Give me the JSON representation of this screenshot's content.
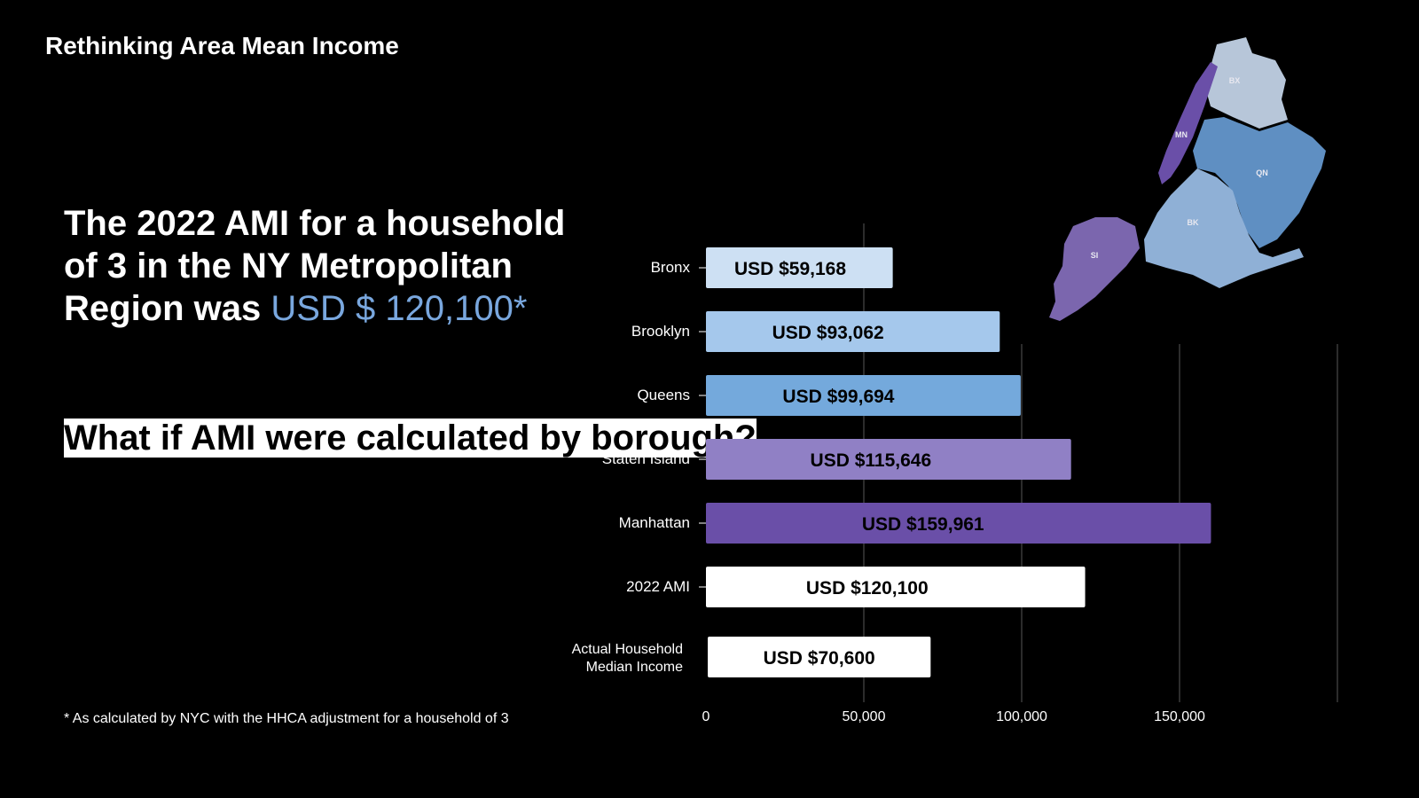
{
  "page": {
    "title": "Rethinking Area Mean Income",
    "headline_part1": "The 2022 AMI for a household of 3 in the NY Metropolitan Region was ",
    "headline_highlight": "USD $ 120,100*",
    "question": "What if AMI were calculated by borough?",
    "footnote": "* As calculated by NYC with the HHCA adjustment for a household of 3"
  },
  "map": {
    "labels": {
      "bronx": "BX",
      "manhattan": "MN",
      "queens": "QN",
      "brooklyn": "BK",
      "staten_island": "SI"
    },
    "colors": {
      "bronx": "#b7c6d9",
      "manhattan": "#6a4fa8",
      "queens": "#5f8fc2",
      "brooklyn": "#8fb0d6",
      "staten_island": "#7b66ae"
    }
  },
  "chart_data": {
    "type": "bar",
    "orientation": "horizontal",
    "categories": [
      "Bronx",
      "Brooklyn",
      "Queens",
      "Staten Island",
      "Manhattan",
      "2022 AMI",
      "Actual Household Median Income"
    ],
    "values": [
      59168,
      93062,
      99694,
      115646,
      159961,
      120100,
      70600
    ],
    "data_labels": [
      "USD $59,168",
      "USD $93,062",
      "USD $99,694",
      "USD $115,646",
      "USD $159,961",
      "USD $120,100",
      "USD $70,600"
    ],
    "colors": [
      "#cde0f3",
      "#a5c8ec",
      "#74a9dc",
      "#9080c5",
      "#6a4fa8",
      "#ffffff",
      "#ffffff"
    ],
    "x_ticks": [
      "0",
      "50,000",
      "100,000",
      "150,000"
    ],
    "xlim": [
      0,
      200000
    ],
    "grid": true
  }
}
